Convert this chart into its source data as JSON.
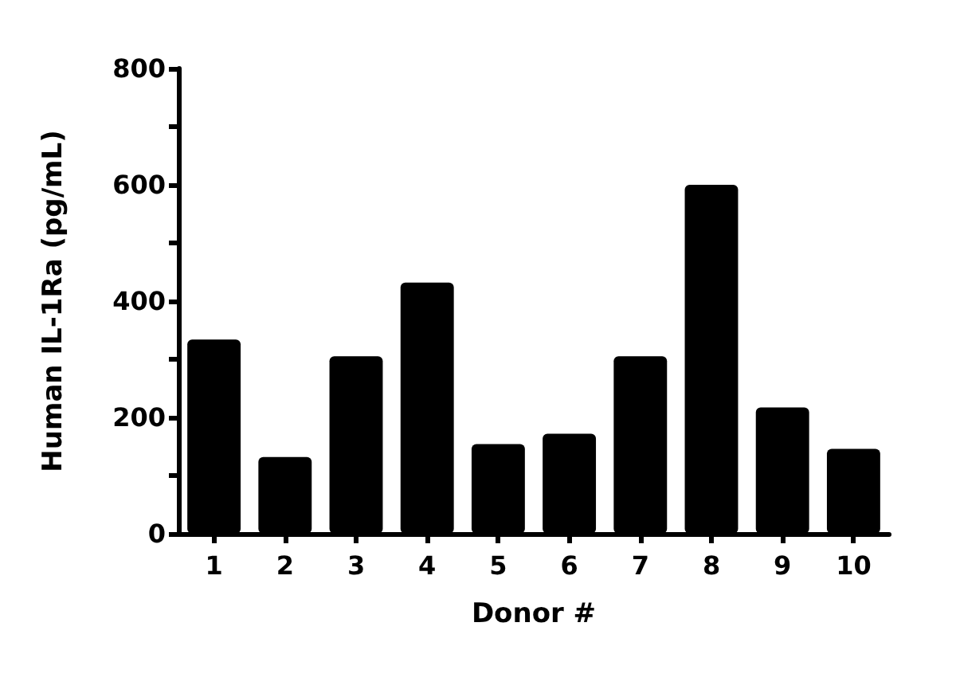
{
  "chart_data": {
    "type": "bar",
    "xlabel": "Donor #",
    "ylabel": "Human IL-1Ra (pg/mL)",
    "categories": [
      "1",
      "2",
      "3",
      "4",
      "5",
      "6",
      "7",
      "8",
      "9",
      "10"
    ],
    "values": [
      334,
      132,
      305,
      432,
      154,
      172,
      305,
      600,
      217,
      146
    ],
    "color": "#000000",
    "ylim": [
      0,
      800
    ],
    "yticks": [
      0,
      {
        "value": 100,
        "label": null
      },
      200,
      {
        "value": 300,
        "label": null
      },
      400,
      {
        "value": 500,
        "label": null
      },
      600,
      {
        "value": 700,
        "label": null
      },
      800
    ],
    "grid": false
  }
}
